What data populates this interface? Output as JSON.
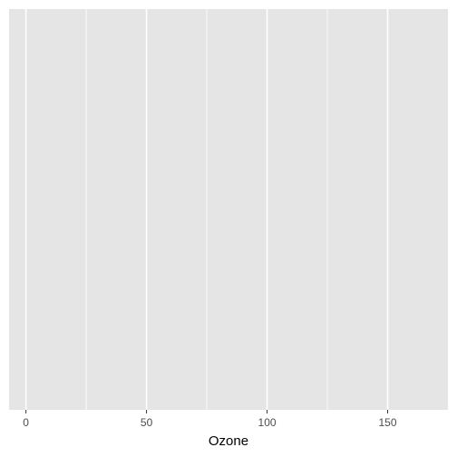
{
  "chart_data": {
    "type": "scatter",
    "title": "",
    "xlabel": "Ozone",
    "ylabel": "",
    "xlim": [
      -7,
      175
    ],
    "x_major_ticks": [
      0,
      50,
      100,
      150
    ],
    "x_minor_ticks": [
      25,
      75,
      125
    ],
    "x_tick_labels": [
      "0",
      "50",
      "100",
      "150"
    ],
    "series": [],
    "grid": true,
    "panel_background": "#e5e5e5",
    "grid_color": "#ffffff",
    "legend": "none"
  }
}
